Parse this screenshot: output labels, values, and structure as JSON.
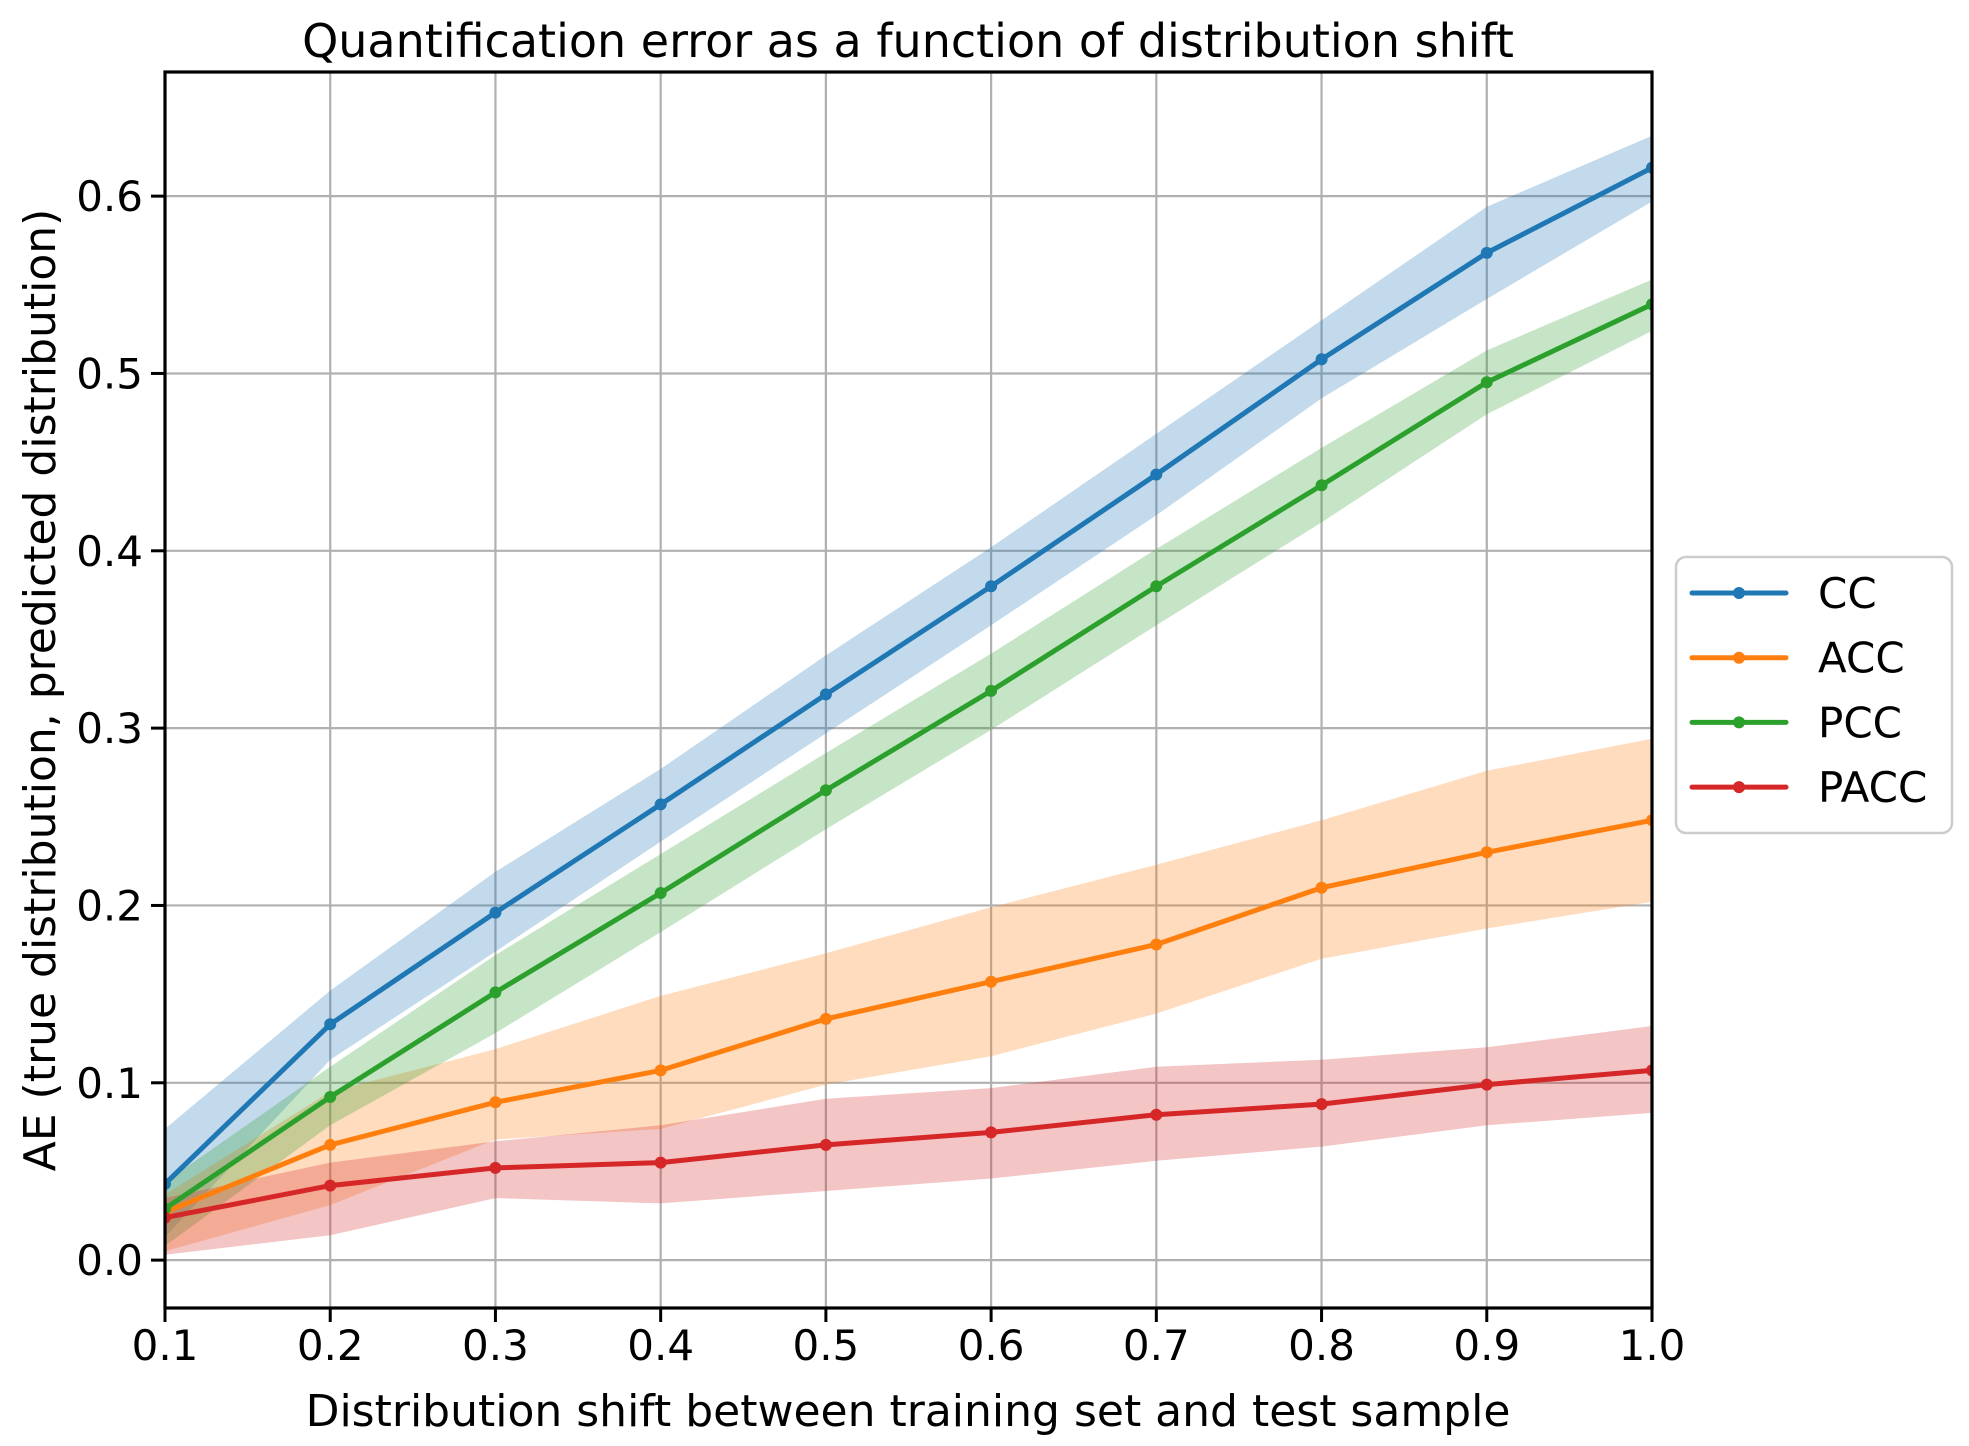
{
  "figure": {
    "title": "Quantification error as a function of distribution shift",
    "xlabel": "Distribution shift between training set and test sample",
    "ylabel": "AE (true distribution, predicted distribution)",
    "background_color": "#ffffff",
    "grid_color": "#b0b0b0",
    "spine_color": "#000000",
    "tick_color": "#000000",
    "legend_border_color": "#cccccc"
  },
  "chart_data": {
    "type": "line",
    "title": "Quantification error as a function of distribution shift",
    "xlabel": "Distribution shift between training set and test sample",
    "ylabel": "AE (true distribution, predicted distribution)",
    "x": [
      0.1,
      0.2,
      0.3,
      0.4,
      0.5,
      0.6,
      0.7,
      0.8,
      0.9,
      1.0
    ],
    "xlim": [
      0.1,
      1.0
    ],
    "ylim": [
      -0.027,
      0.67
    ],
    "grid": true,
    "band_alpha": 0.27,
    "marker": "circle",
    "legend_position": "right-outside",
    "xticks": {
      "values": [
        0.1,
        0.2,
        0.3,
        0.4,
        0.5,
        0.6,
        0.7,
        0.8,
        0.9,
        1.0
      ],
      "labels": [
        "0.1",
        "0.2",
        "0.3",
        "0.4",
        "0.5",
        "0.6",
        "0.7",
        "0.8",
        "0.9",
        "1.0"
      ]
    },
    "yticks": {
      "values": [
        0.0,
        0.1,
        0.2,
        0.3,
        0.4,
        0.5,
        0.6
      ],
      "labels": [
        "0.0",
        "0.1",
        "0.2",
        "0.3",
        "0.4",
        "0.5",
        "0.6"
      ]
    },
    "series": [
      {
        "name": "CC",
        "color": "#1f77b4",
        "values": [
          0.043,
          0.133,
          0.196,
          0.257,
          0.319,
          0.38,
          0.443,
          0.508,
          0.568,
          0.616
        ],
        "band_low": [
          0.013,
          0.113,
          0.174,
          0.236,
          0.297,
          0.358,
          0.42,
          0.486,
          0.542,
          0.597
        ],
        "band_high": [
          0.074,
          0.152,
          0.219,
          0.277,
          0.341,
          0.402,
          0.466,
          0.53,
          0.594,
          0.634
        ]
      },
      {
        "name": "ACC",
        "color": "#ff7f0e",
        "values": [
          0.027,
          0.065,
          0.089,
          0.107,
          0.136,
          0.157,
          0.178,
          0.21,
          0.23,
          0.248
        ],
        "band_low": [
          0.005,
          0.031,
          0.068,
          0.074,
          0.099,
          0.115,
          0.139,
          0.17,
          0.187,
          0.202
        ],
        "band_high": [
          0.037,
          0.095,
          0.119,
          0.149,
          0.173,
          0.199,
          0.223,
          0.248,
          0.276,
          0.294
        ]
      },
      {
        "name": "PCC",
        "color": "#2ca02c",
        "values": [
          0.029,
          0.092,
          0.151,
          0.207,
          0.265,
          0.321,
          0.38,
          0.437,
          0.495,
          0.539
        ],
        "band_low": [
          0.008,
          0.076,
          0.128,
          0.185,
          0.243,
          0.299,
          0.358,
          0.416,
          0.477,
          0.524
        ],
        "band_high": [
          0.044,
          0.109,
          0.172,
          0.229,
          0.286,
          0.342,
          0.401,
          0.458,
          0.513,
          0.553
        ]
      },
      {
        "name": "PACC",
        "color": "#d62728",
        "values": [
          0.024,
          0.042,
          0.052,
          0.055,
          0.065,
          0.072,
          0.082,
          0.088,
          0.099,
          0.107
        ],
        "band_low": [
          0.003,
          0.014,
          0.035,
          0.032,
          0.039,
          0.046,
          0.056,
          0.064,
          0.076,
          0.083
        ],
        "band_high": [
          0.035,
          0.055,
          0.067,
          0.076,
          0.091,
          0.097,
          0.109,
          0.113,
          0.12,
          0.132
        ]
      }
    ],
    "legend_entries": [
      "CC",
      "ACC",
      "PCC",
      "PACC"
    ]
  }
}
